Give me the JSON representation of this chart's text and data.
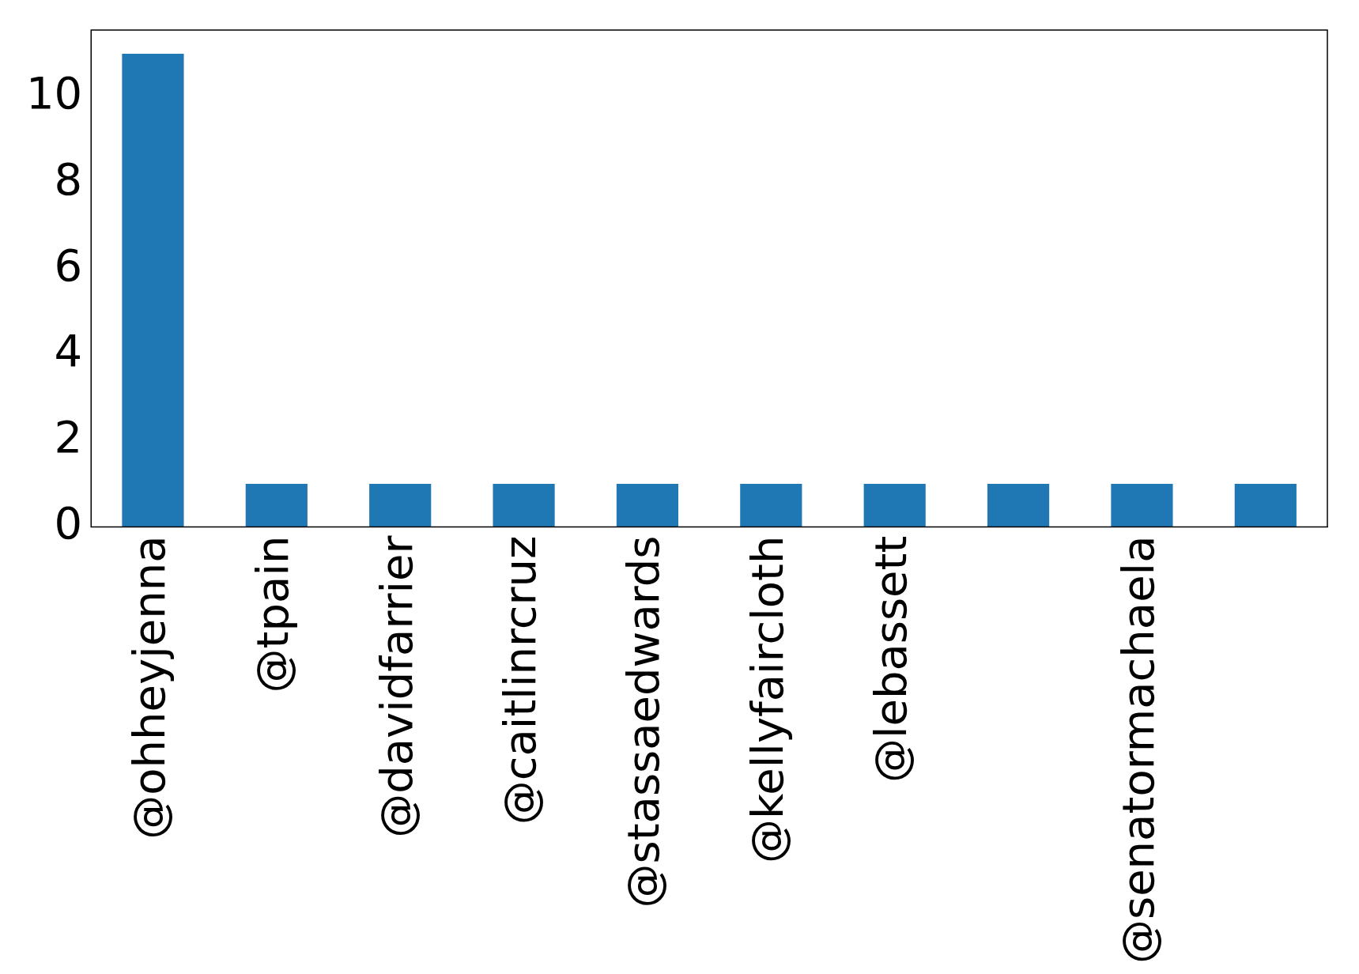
{
  "chart_data": {
    "type": "bar",
    "categories": [
      "@ohheyjenna",
      "@tpain",
      "@davidfarrier",
      "@caitlinrcruz",
      "@stassaedwards",
      "@kellyfaircloth",
      "@lebassett",
      null,
      "@senatormachaela",
      null
    ],
    "values": [
      11,
      1,
      1,
      1,
      1,
      1,
      1,
      1,
      1,
      1
    ],
    "color": "#1f77b4",
    "ylim": [
      0,
      11.55
    ],
    "yticks": [
      0,
      2,
      4,
      6,
      8,
      10
    ],
    "grid": false,
    "legend": false
  }
}
